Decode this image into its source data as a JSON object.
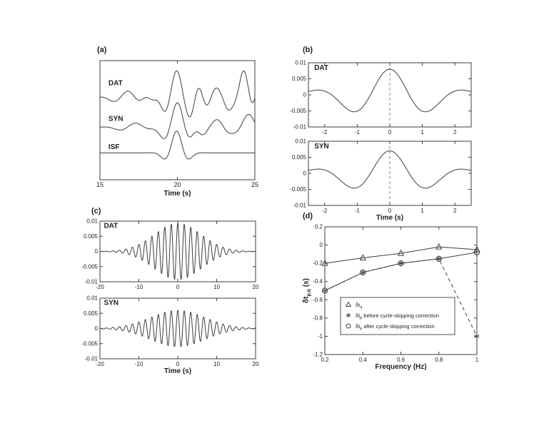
{
  "figure": {
    "bg": "#ffffff",
    "ink": "#3d3d3d",
    "dash_color": "#888888"
  },
  "chart_data": [
    {
      "id": "a",
      "panel_label": "(a)",
      "type": "line",
      "xlabel": "Time (s)",
      "ylabel": "",
      "xlim": [
        15,
        25
      ],
      "ylim": [
        -1.3,
        6.9
      ],
      "x_ticks": [
        15,
        20,
        25
      ],
      "y_ticks": [],
      "trace_labels": [
        {
          "text": "DAT",
          "x": 15.55,
          "y": 5.2
        },
        {
          "text": "SYN",
          "x": 15.55,
          "y": 2.75
        },
        {
          "text": "ISF",
          "x": 15.55,
          "y": 0.8
        }
      ],
      "series": [
        {
          "kind": "waveform",
          "name": "DAT",
          "offset": 4.35,
          "components": [
            [
              16.8,
              0.45,
              0.5,
              0.9,
              0
            ],
            [
              18.4,
              0.35,
              0.75,
              0.5,
              180
            ],
            [
              19.95,
              1.85,
              0.55,
              0.8,
              0
            ],
            [
              21.35,
              0.55,
              0.85,
              0.5,
              0
            ],
            [
              22.5,
              0.6,
              0.7,
              0.55,
              0
            ],
            [
              23.3,
              0.4,
              0.8,
              0.4,
              180
            ],
            [
              24.3,
              1.95,
              0.55,
              0.5,
              0
            ],
            [
              25.35,
              1.6,
              0.5,
              0.45,
              0
            ]
          ]
        },
        {
          "kind": "waveform",
          "name": "SYN",
          "offset": 2.3,
          "components": [
            [
              17.3,
              0.3,
              0.45,
              1.0,
              0
            ],
            [
              20.0,
              1.7,
              0.5,
              0.75,
              0
            ],
            [
              21.6,
              0.45,
              0.7,
              0.5,
              180
            ],
            [
              22.6,
              0.5,
              0.6,
              0.6,
              0
            ],
            [
              24.6,
              0.9,
              0.45,
              0.7,
              0
            ]
          ]
        },
        {
          "kind": "waveform",
          "name": "ISF",
          "offset": 0.55,
          "components": [
            [
              19.95,
              1.5,
              0.5,
              0.55,
              0
            ]
          ]
        }
      ]
    },
    {
      "id": "b1",
      "panel_label": "(b)",
      "type": "line",
      "xlabel": "",
      "xlim": [
        -2.5,
        2.5
      ],
      "ylim": [
        -0.01,
        0.01
      ],
      "x_ticks": [
        -2,
        -1,
        0,
        1,
        2
      ],
      "y_ticks": [
        0.01,
        0.005,
        0,
        -0.005,
        -0.01
      ],
      "vlines": [
        {
          "x": 0
        }
      ],
      "trace_labels": [
        {
          "text": "DAT",
          "x": -2.32,
          "y": 0.0078
        }
      ],
      "series": [
        {
          "kind": "waveform",
          "name": "DAT",
          "offset": 0,
          "components": [
            [
              0,
              0.008,
              0.42,
              1.25,
              0
            ]
          ]
        }
      ]
    },
    {
      "id": "b2",
      "panel_label": "",
      "type": "line",
      "xlabel": "Time (s)",
      "xlim": [
        -2.5,
        2.5
      ],
      "ylim": [
        -0.01,
        0.01
      ],
      "x_ticks": [
        -2,
        -1,
        0,
        1,
        2
      ],
      "y_ticks": [
        0.01,
        0.005,
        0,
        -0.005,
        -0.01
      ],
      "vlines": [
        {
          "x": 0
        }
      ],
      "trace_labels": [
        {
          "text": "SYN",
          "x": -2.32,
          "y": 0.0078
        }
      ],
      "series": [
        {
          "kind": "waveform",
          "name": "SYN",
          "offset": 0,
          "components": [
            [
              0,
              0.007,
              0.42,
              1.25,
              0
            ]
          ]
        }
      ]
    },
    {
      "id": "c1",
      "panel_label": "(c)",
      "type": "line",
      "xlabel": "",
      "xlim": [
        -20,
        20
      ],
      "ylim": [
        -0.01,
        0.01
      ],
      "x_ticks": [
        -20,
        -10,
        0,
        10,
        20
      ],
      "y_ticks": [
        0.01,
        0.005,
        0,
        -0.005,
        -0.01
      ],
      "trace_labels": [
        {
          "text": "DAT",
          "x": -19,
          "y": 0.0078
        }
      ],
      "series": [
        {
          "kind": "waveform",
          "name": "DAT",
          "offset": 0,
          "components": [
            [
              0,
              0.0093,
              0.6,
              6.0,
              0
            ]
          ]
        }
      ]
    },
    {
      "id": "c2",
      "panel_label": "",
      "type": "line",
      "xlabel": "Time (s)",
      "xlim": [
        -20,
        20
      ],
      "ylim": [
        -0.01,
        0.01
      ],
      "x_ticks": [
        -20,
        -10,
        0,
        10,
        20
      ],
      "y_ticks": [
        0.01,
        0.005,
        0,
        -0.005,
        -0.01
      ],
      "trace_labels": [
        {
          "text": "SYN",
          "x": -19,
          "y": 0.0078
        }
      ],
      "series": [
        {
          "kind": "waveform",
          "name": "SYN",
          "offset": 0,
          "components": [
            [
              0,
              0.006,
              0.6,
              7.0,
              0
            ]
          ]
        }
      ]
    },
    {
      "id": "d",
      "panel_label": "(d)",
      "type": "scatter",
      "xlabel": "Frequency (Hz)",
      "ylabel": {
        "pre": "δt",
        "sub": "p,q",
        "rest": " (s)"
      },
      "xlim": [
        0.2,
        1
      ],
      "ylim": [
        -1.2,
        0.2
      ],
      "x_ticks": [
        0.2,
        0.4,
        0.6,
        0.8,
        1
      ],
      "y_ticks": [
        0.2,
        0,
        -0.2,
        -0.4,
        -0.6,
        -0.8,
        -1,
        -1.2
      ],
      "series": [
        {
          "kind": "points",
          "name": "dt_q",
          "marker": "triangle",
          "line": "solid",
          "x": [
            0.2,
            0.4,
            0.6,
            0.8,
            1
          ],
          "y": [
            -0.2,
            -0.14,
            -0.09,
            -0.02,
            -0.05
          ]
        },
        {
          "kind": "points",
          "name": "dt_p_before_cycle_skip_correction",
          "marker": "asterisk",
          "line": "dashed",
          "x": [
            0.2,
            0.4,
            0.6,
            0.8,
            1
          ],
          "y": [
            -0.5,
            -0.3,
            -0.2,
            -0.15,
            -1.0
          ]
        },
        {
          "kind": "points",
          "name": "dt_p_after_cycle_skip_correction",
          "marker": "circle",
          "line": "solid",
          "x": [
            0.2,
            0.4,
            0.6,
            0.8,
            1
          ],
          "y": [
            -0.5,
            -0.3,
            -0.2,
            -0.15,
            -0.08
          ]
        }
      ],
      "legend": {
        "entries": [
          {
            "marker": "triangle",
            "pre": "δt",
            "sub": "q",
            "rest": ""
          },
          {
            "marker": "asterisk",
            "pre": "δt",
            "sub": "p",
            "rest": " before cycle-skipping correction"
          },
          {
            "marker": "circle",
            "pre": "δt",
            "sub": "p",
            "rest": " after cycle-skipping correction"
          }
        ]
      }
    }
  ]
}
